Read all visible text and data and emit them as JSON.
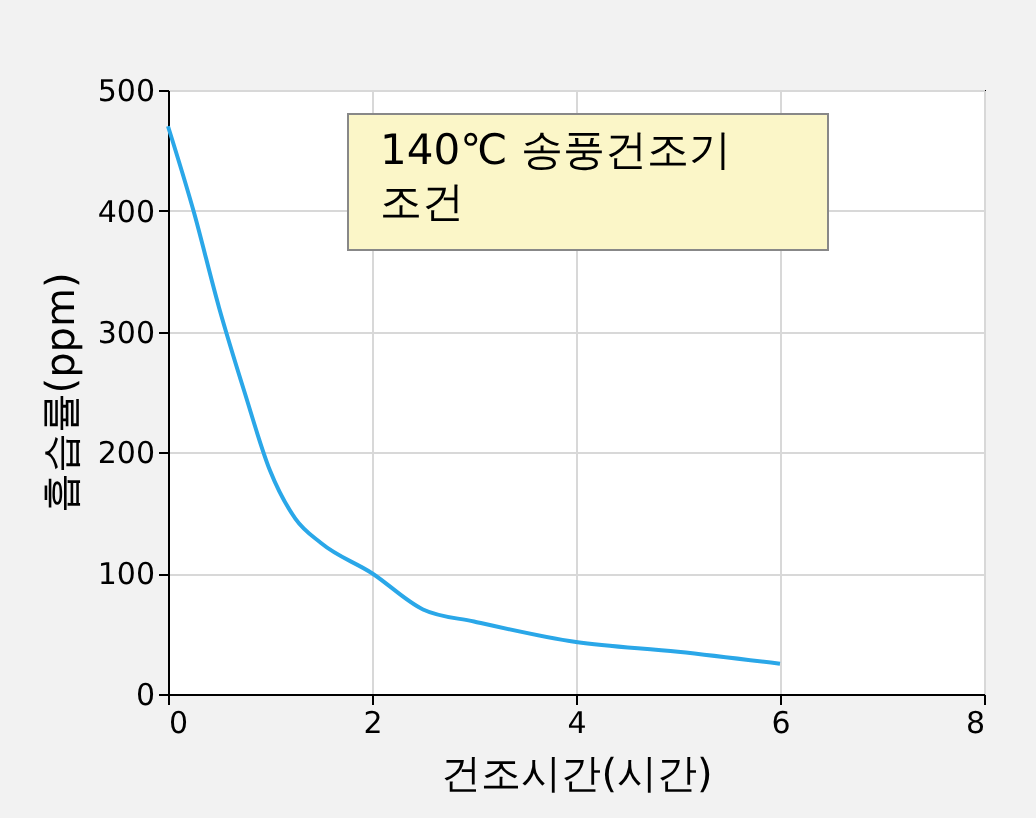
{
  "chart_data": {
    "type": "line",
    "xlabel": "건조시간(시간)",
    "ylabel": "흡습률(ppm)",
    "x": [
      0,
      0.25,
      0.5,
      0.75,
      1.0,
      1.25,
      1.5,
      2.0,
      2.5,
      3,
      4,
      5,
      6
    ],
    "series": [
      {
        "color": "#2aa7e8",
        "values": [
          470,
          400,
          320,
          250,
          185,
          145,
          125,
          100,
          70,
          60,
          43,
          35,
          25
        ]
      }
    ],
    "xlim": [
      0,
      8
    ],
    "xticks": [
      0,
      2,
      4,
      6,
      8
    ],
    "ylim": [
      0,
      500
    ],
    "yticks": [
      0,
      100,
      200,
      300,
      400,
      500
    ],
    "grid": true,
    "annotations": [
      "140℃ 송풍건조기 조건"
    ]
  }
}
